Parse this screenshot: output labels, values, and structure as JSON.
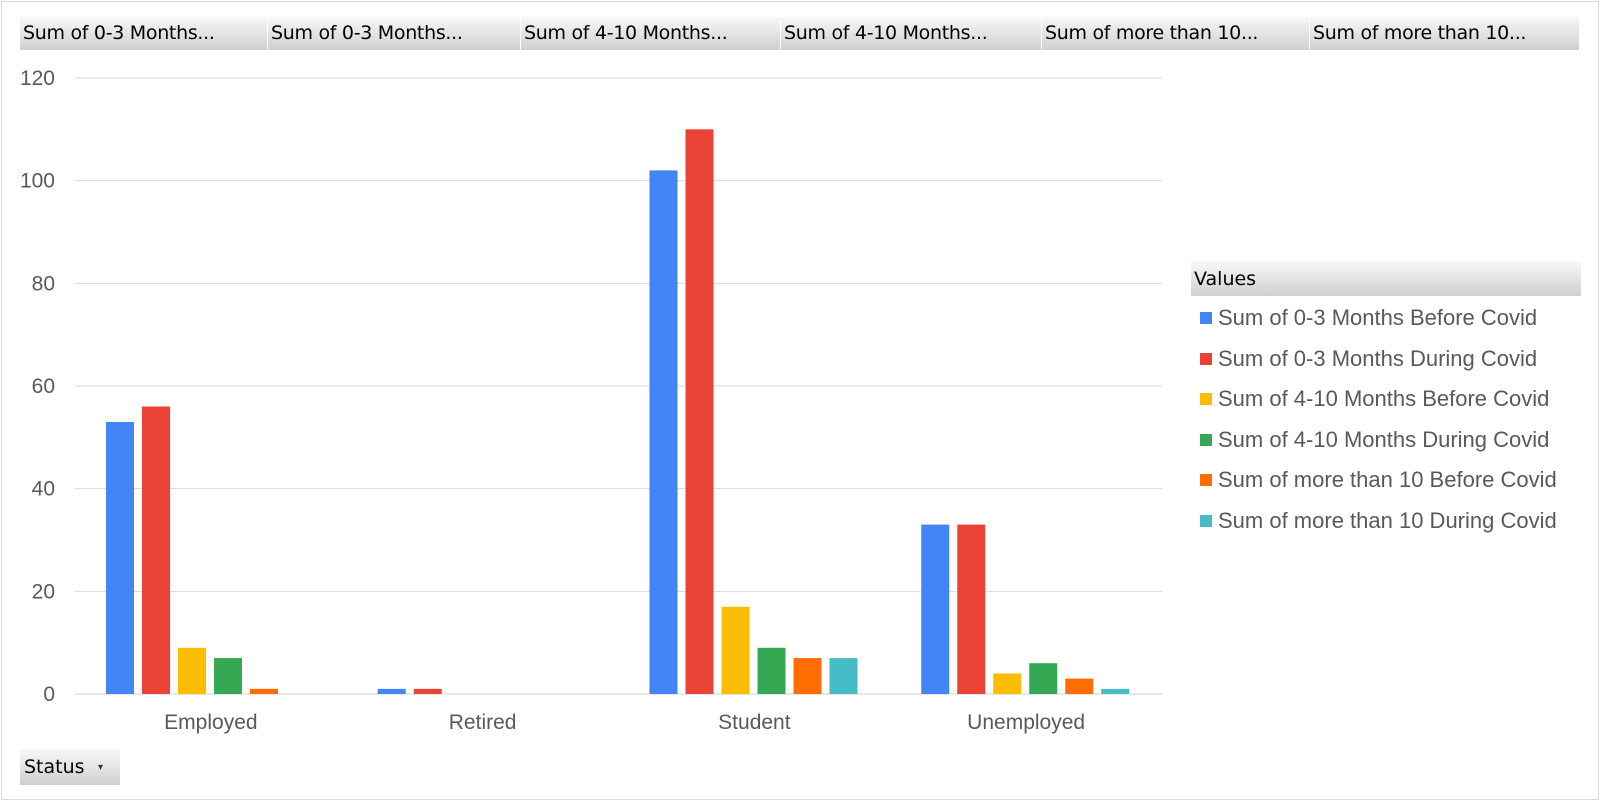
{
  "field_buttons": [
    "Sum of 0-3 Months...",
    "Sum of 0-3 Months...",
    "Sum of 4-10 Months...",
    "Sum of 4-10 Months...",
    "Sum of more than 10...",
    "Sum of more than 10..."
  ],
  "legend_header": "Values",
  "status_button": {
    "label": "Status",
    "arrow": "▾"
  },
  "colors": [
    "#4285F4",
    "#EA4335",
    "#FBBC04",
    "#34A853",
    "#FF6D01",
    "#46BDC6"
  ],
  "chart_data": {
    "type": "bar",
    "categories": [
      "Employed",
      "Retired",
      "Student",
      "Unemployed"
    ],
    "series": [
      {
        "name": "Sum of 0-3 Months Before Covid",
        "values": [
          53,
          1,
          102,
          33
        ]
      },
      {
        "name": "Sum of 0-3 Months During Covid",
        "values": [
          56,
          1,
          110,
          33
        ]
      },
      {
        "name": "Sum of 4-10 Months Before Covid",
        "values": [
          9,
          0,
          17,
          4
        ]
      },
      {
        "name": "Sum of 4-10 Months During Covid",
        "values": [
          7,
          0,
          9,
          6
        ]
      },
      {
        "name": "Sum of more than 10 Before Covid",
        "values": [
          1,
          0,
          7,
          3
        ]
      },
      {
        "name": "Sum of more than 10 During Covid",
        "values": [
          0,
          0,
          7,
          1
        ]
      }
    ],
    "ylim": [
      0,
      120
    ],
    "yticks": [
      0,
      20,
      40,
      60,
      80,
      100,
      120
    ],
    "grid": true,
    "legend_position": "right"
  }
}
